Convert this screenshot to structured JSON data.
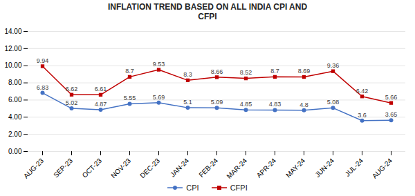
{
  "chart_data": {
    "type": "line",
    "title": "INFLATION TREND BASED ON ALL INDIA CPI AND\nCFPI",
    "categories": [
      "AUG-23",
      "SEP-23",
      "OCT-23",
      "NOV-23",
      "DEC-23",
      "JAN-24",
      "FEB-24",
      "MAR-24",
      "APR-24",
      "MAY-24",
      "JUN-24",
      "JUL-24",
      "AUG-24"
    ],
    "series": [
      {
        "name": "CPI",
        "color": "#4472C4",
        "marker": "circle",
        "values": [
          6.83,
          5.02,
          4.87,
          5.55,
          5.69,
          5.1,
          5.09,
          4.85,
          4.83,
          4.8,
          5.08,
          3.6,
          3.65
        ]
      },
      {
        "name": "CFPI",
        "color": "#C00000",
        "marker": "square",
        "values": [
          9.94,
          6.62,
          6.61,
          8.7,
          9.53,
          8.3,
          8.66,
          8.52,
          8.7,
          8.69,
          9.36,
          6.42,
          5.66
        ]
      }
    ],
    "ylim": [
      0,
      14
    ],
    "yticks": [
      {
        "value": 0,
        "label": "0.00"
      },
      {
        "value": 2,
        "label": "2.00"
      },
      {
        "value": 4,
        "label": "4.00"
      },
      {
        "value": 6,
        "label": "6.00"
      },
      {
        "value": 8,
        "label": "8.00"
      },
      {
        "value": 10,
        "label": "10.00"
      },
      {
        "value": 12,
        "label": "12.00"
      },
      {
        "value": 14,
        "label": "14.00"
      }
    ],
    "grid": true,
    "legend": "bottom",
    "data_labels": true
  }
}
